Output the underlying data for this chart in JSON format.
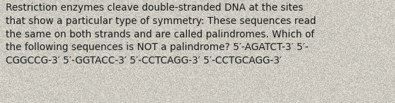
{
  "text": "Restriction enzymes cleave double-stranded DNA at the sites\nthat show a particular type of symmetry: These sequences read\nthe same on both strands and are called palindromes. Which of\nthe following sequences is NOT a palindrome? 5′-AGATCT-3′ 5′-\nCGGCCG-3′ 5′-GGTACC-3′ 5′-CCTCAGG-3′ 5′-CCTGCAGG-3′",
  "background_color": "#dedad0",
  "text_color": "#1a1a1a",
  "font_size": 9.8,
  "font_family": "DejaVu Sans",
  "fig_width": 5.58,
  "fig_height": 1.46,
  "dpi": 100,
  "noise_seed": 42,
  "noise_alpha": 0.18
}
